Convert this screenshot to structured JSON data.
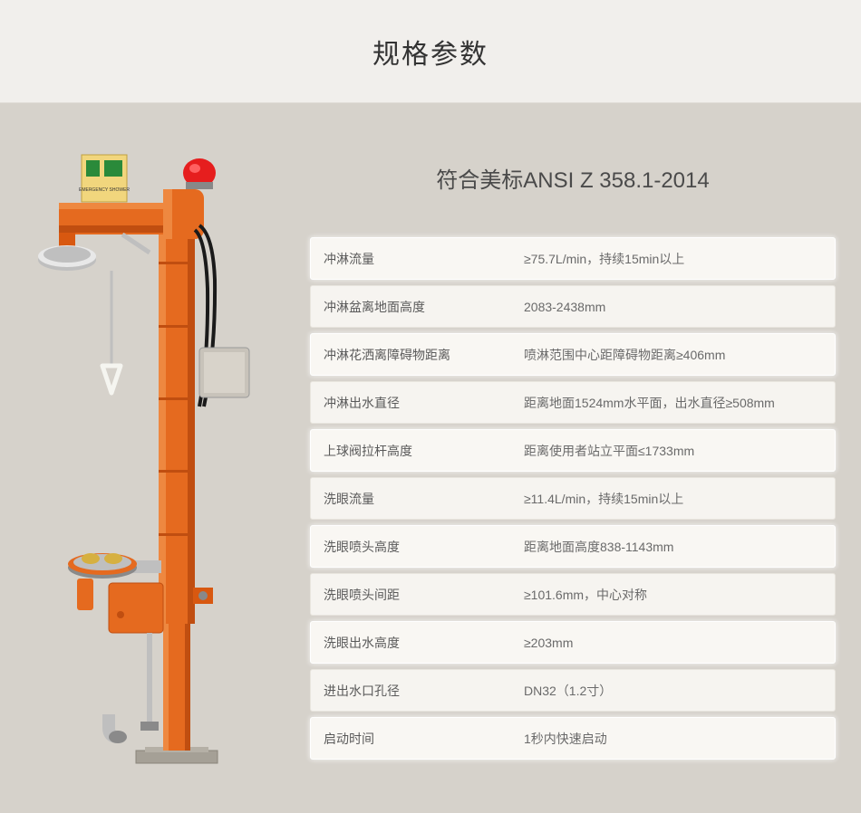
{
  "header": {
    "title": "规格参数"
  },
  "specs": {
    "title": "符合美标ANSI Z 358.1-2014",
    "rows": [
      {
        "label": "冲淋流量",
        "value": "≥75.7L/min，持续15min以上",
        "highlight": true
      },
      {
        "label": "冲淋盆离地面高度",
        "value": "2083-2438mm",
        "highlight": false
      },
      {
        "label": "冲淋花洒离障碍物距离",
        "value": "喷淋范围中心距障碍物距离≥406mm",
        "highlight": true
      },
      {
        "label": "冲淋出水直径",
        "value": "距离地面1524mm水平面，出水直径≥508mm",
        "highlight": false
      },
      {
        "label": "上球阀拉杆高度",
        "value": "距离使用者站立平面≤1733mm",
        "highlight": true
      },
      {
        "label": "洗眼流量",
        "value": "≥11.4L/min，持续15min以上",
        "highlight": false
      },
      {
        "label": "洗眼喷头高度",
        "value": "距离地面高度838-1143mm",
        "highlight": true
      },
      {
        "label": "洗眼喷头间距",
        "value": "≥101.6mm，中心对称",
        "highlight": false
      },
      {
        "label": "洗眼出水高度",
        "value": "≥203mm",
        "highlight": true
      },
      {
        "label": "进出水口孔径",
        "value": "DN32（1.2寸）",
        "highlight": false
      },
      {
        "label": "启动时间",
        "value": "1秒内快速启动",
        "highlight": true
      }
    ]
  },
  "product_visual": {
    "main_color": "#e56a1f",
    "accent_color": "#d85810",
    "metal_color": "#bfbfbf",
    "metal_light": "#e8e8e8",
    "metal_dark": "#8a8a8a",
    "beacon_color": "#e61e1e",
    "sign_bg": "#f1d67d",
    "base_color": "#a5a096",
    "handle_white": "#f5f5f0",
    "cable_black": "#1a1a1a"
  }
}
